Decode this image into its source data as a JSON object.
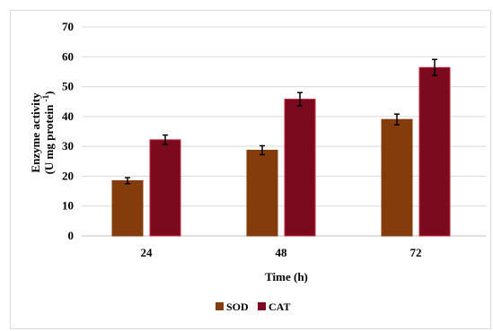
{
  "chart_data": {
    "type": "bar",
    "categories": [
      "24",
      "48",
      "72"
    ],
    "series": [
      {
        "name": "SOD",
        "color": "#843C0C",
        "values": [
          18.5,
          28.7,
          39.0
        ],
        "errors": [
          1.0,
          1.5,
          1.8
        ]
      },
      {
        "name": "CAT",
        "color": "#7B0A1E",
        "values": [
          32.2,
          45.8,
          56.4
        ],
        "errors": [
          1.6,
          2.2,
          2.7
        ]
      }
    ],
    "ylim": [
      0,
      70
    ],
    "yticks": [
      "0",
      "10",
      "20",
      "30",
      "40",
      "50",
      "60",
      "70"
    ],
    "xlabel": "Time (h)",
    "ylabel_line1": "Enzyme activity",
    "ylabel_line2": "(U mg protein",
    "ylabel_sup": "-1",
    "ylabel_close": ")",
    "grid": true,
    "grid_color": "#d9d9d9",
    "legend_position": "bottom"
  }
}
